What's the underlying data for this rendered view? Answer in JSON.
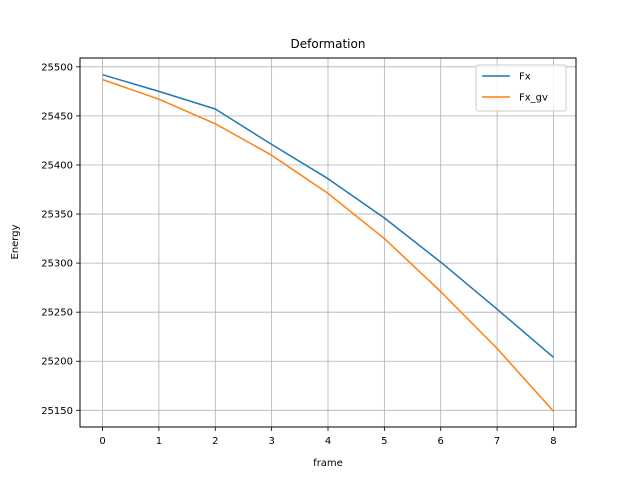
{
  "chart_data": {
    "type": "line",
    "title": "Deformation",
    "xlabel": "frame",
    "ylabel": "Energy",
    "x": [
      0,
      1,
      2,
      3,
      4,
      5,
      6,
      7,
      8
    ],
    "xlim": [
      -0.4,
      8.4
    ],
    "ylim": [
      25133,
      25509
    ],
    "xticks": [
      0,
      1,
      2,
      3,
      4,
      5,
      6,
      7,
      8
    ],
    "yticks": [
      25150,
      25200,
      25250,
      25300,
      25350,
      25400,
      25450,
      25500
    ],
    "grid": true,
    "legend_position": "top-right",
    "series": [
      {
        "name": "Fx",
        "color": "#1f77b4",
        "values": [
          25492,
          25475,
          25457,
          25421,
          25386,
          25346,
          25301,
          25253,
          25204
        ]
      },
      {
        "name": "Fx_gv",
        "color": "#ff7f0e",
        "values": [
          25487,
          25467,
          25442,
          25410,
          25371,
          25325,
          25271,
          25213,
          25149
        ]
      }
    ]
  }
}
